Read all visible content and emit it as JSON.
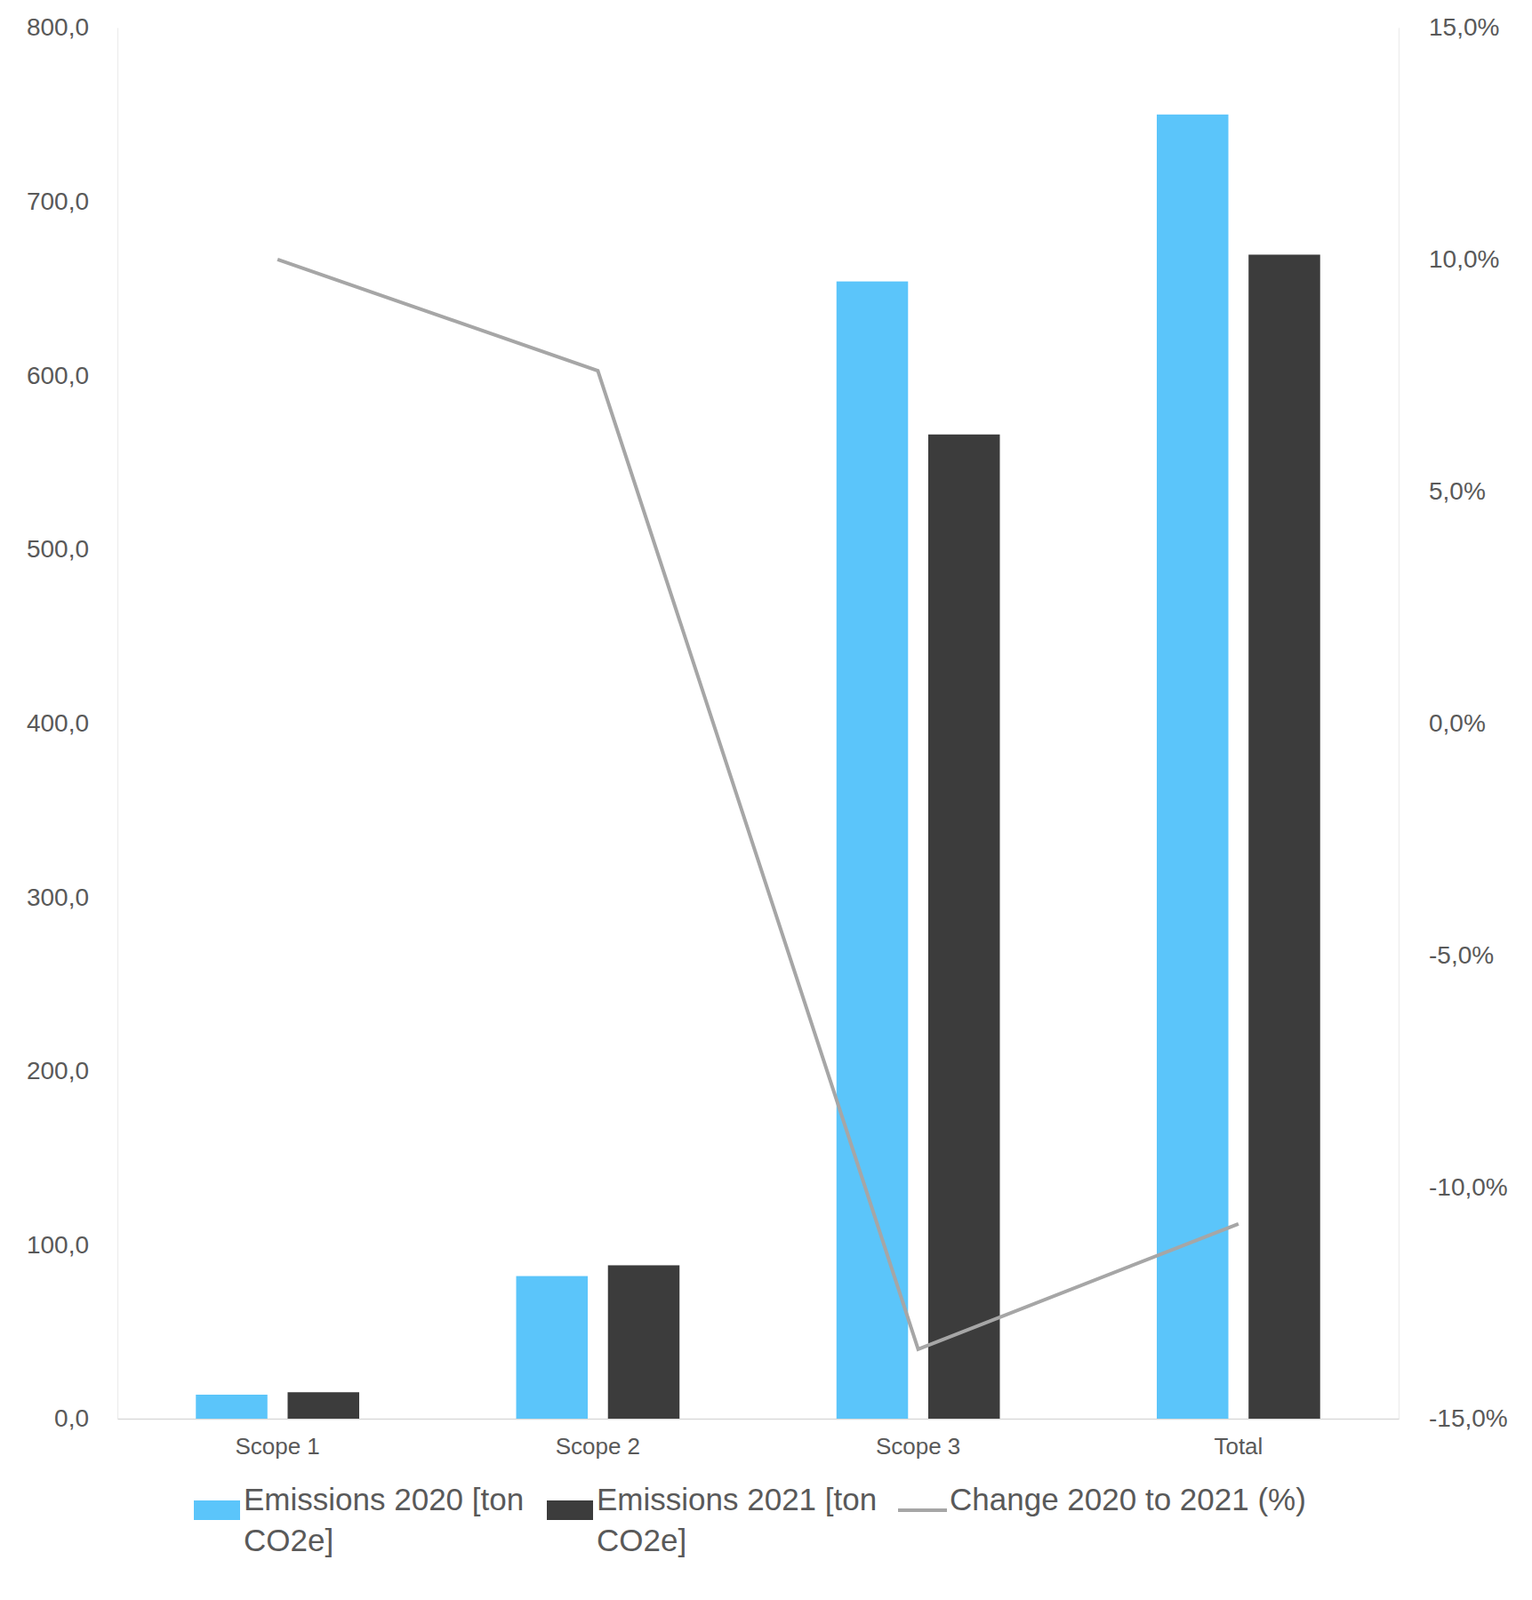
{
  "chart_data": {
    "type": "bar",
    "categories": [
      "Scope 1",
      "Scope 2",
      "Scope 3",
      "Total"
    ],
    "series": [
      {
        "name": "Emissions 2020 [ton CO2e]",
        "color": "#5bc5fa",
        "type": "bar",
        "values": [
          13.8,
          82.0,
          654.0,
          750.0
        ]
      },
      {
        "name": "Emissions 2021 [ton CO2e]",
        "color": "#3c3c3c",
        "type": "bar",
        "values": [
          15.2,
          88.2,
          566.0,
          669.4
        ]
      },
      {
        "name": "Change 2020 to 2021 (%)",
        "color": "#a6a6a6",
        "type": "line",
        "axis": "y2",
        "values": [
          10.0,
          7.6,
          -13.5,
          -10.8
        ]
      }
    ],
    "ylim": [
      0,
      800
    ],
    "yticks": [
      {
        "value": 0,
        "label": "0,0"
      },
      {
        "value": 100,
        "label": "100,0"
      },
      {
        "value": 200,
        "label": "200,0"
      },
      {
        "value": 300,
        "label": "300,0"
      },
      {
        "value": 400,
        "label": "400,0"
      },
      {
        "value": 500,
        "label": "500,0"
      },
      {
        "value": 600,
        "label": "600,0"
      },
      {
        "value": 700,
        "label": "700,0"
      },
      {
        "value": 800,
        "label": "800,0"
      }
    ],
    "y2lim": [
      -15,
      15
    ],
    "y2ticks": [
      {
        "value": -15,
        "label": "-15,0%"
      },
      {
        "value": -10,
        "label": "-10,0%"
      },
      {
        "value": -5,
        "label": "-5,0%"
      },
      {
        "value": 0,
        "label": "0,0%"
      },
      {
        "value": 5,
        "label": "5,0%"
      },
      {
        "value": 10,
        "label": "10,0%"
      },
      {
        "value": 15,
        "label": "15,0%"
      }
    ],
    "grid": false,
    "legend": "bottom"
  }
}
